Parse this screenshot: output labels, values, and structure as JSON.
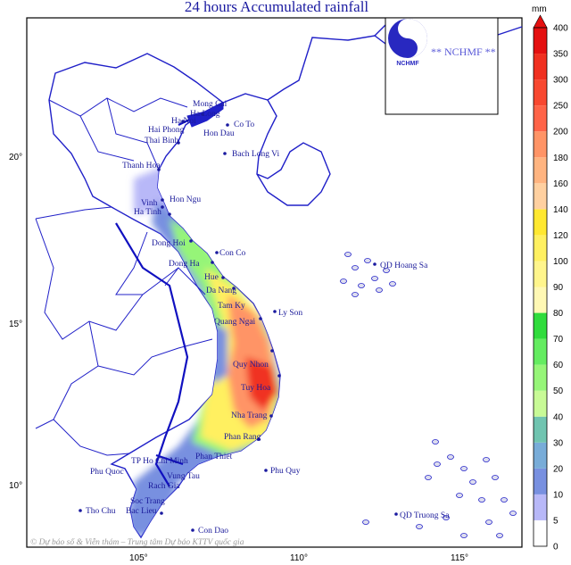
{
  "title": "24 hours Accumulated rainfall",
  "logo": {
    "text": "** NCHMF **",
    "emblem_text": "NCHMF"
  },
  "axes": {
    "lat_ticks": [
      "20°",
      "15°",
      "10°"
    ],
    "lon_ticks": [
      "105°",
      "110°",
      "115°"
    ]
  },
  "colorbar": {
    "unit": "mm",
    "levels": [
      "0",
      "5",
      "10",
      "20",
      "30",
      "40",
      "50",
      "60",
      "70",
      "80",
      "90",
      "100",
      "120",
      "140",
      "160",
      "180",
      "200",
      "250",
      "300",
      "350",
      "400"
    ],
    "colors": [
      "#ffffff",
      "#b8b8f8",
      "#7890e0",
      "#78acd8",
      "#70c4b0",
      "#c8fa96",
      "#96f578",
      "#64ec60",
      "#30dc3c",
      "#fff8b4",
      "#fff58c",
      "#fff060",
      "#ffe830",
      "#ffd0a0",
      "#ffb480",
      "#ff9466",
      "#ff6448",
      "#f84830",
      "#f03020",
      "#e41010"
    ],
    "arrow_color": "#e41010"
  },
  "places": [
    "Mong Cai",
    "Ha Long",
    "Ha Noi",
    "Hai Phong",
    "Thai Binh",
    "Hon Dau",
    "Co To",
    "Bach Long Vi",
    "Thanh Hoa",
    "Hon Ngu",
    "Vinh",
    "Ha Tinh",
    "Dong Hoi",
    "Con Co",
    "Dong Ha",
    "Hue",
    "Da Nang",
    "Tam Ky",
    "Quang Ngai",
    "Ly Son",
    "Quy Nhon",
    "Tuy Hoa",
    "Nha Trang",
    "Phan Rang",
    "Phan Thiet",
    "TP Ho Chi Minh",
    "Phu Quoc",
    "Vung Tau",
    "Rach Gia",
    "Soc Trang",
    "Bac Lieu",
    "Tho Chu",
    "Con Dao",
    "Phu Quy",
    "QD Hoang Sa",
    "QD Truong Sa"
  ],
  "copyright": "© Dự báo số & Viễn thám – Trung tâm Dự báo KTTV quốc gia"
}
